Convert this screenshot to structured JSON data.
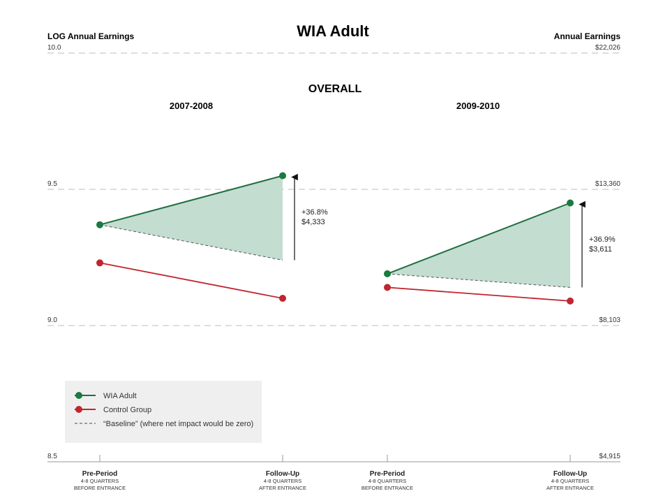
{
  "title": "WIA Adult",
  "section_title": "OVERALL",
  "colors": {
    "treatment": "#1f6e3f",
    "treatment_marker": "#1a7a40",
    "control": "#c0262f",
    "shade": "#c3ddd0",
    "grid": "#bdbdbd",
    "legend_bg": "#efefef"
  },
  "chart_data": {
    "type": "line",
    "left_axis": {
      "label": "LOG Annual Earnings",
      "ticks": [
        "10.0",
        "9.5",
        "9.0",
        "8.5"
      ],
      "tick_values": [
        10.0,
        9.5,
        9.0,
        8.5
      ],
      "range": [
        8.5,
        10.0
      ]
    },
    "right_axis": {
      "label": "Annual Earnings",
      "ticks": [
        "$22,026",
        "$13,360",
        "$8,103",
        "$4,915"
      ]
    },
    "x_categories": [
      {
        "label": "Pre-Period",
        "sub1": "4-8 QUARTERS",
        "sub2": "BEFORE ENTRANCE"
      },
      {
        "label": "Follow-Up",
        "sub1": "4-8 QUARTERS",
        "sub2": "AFTER ENTRANCE"
      },
      {
        "label": "Pre-Period",
        "sub1": "4-8 QUARTERS",
        "sub2": "BEFORE ENTRANCE"
      },
      {
        "label": "Follow-Up",
        "sub1": "4-8 QUARTERS",
        "sub2": "AFTER ENTRANCE"
      }
    ],
    "panels": [
      {
        "period": "2007-2008",
        "wia_adult": [
          9.37,
          9.55
        ],
        "control_group": [
          9.23,
          9.1
        ],
        "baseline": [
          9.37,
          9.24
        ],
        "annotation_pct": "+36.8%",
        "annotation_amt": "$4,333"
      },
      {
        "period": "2009-2010",
        "wia_adult": [
          9.19,
          9.45
        ],
        "control_group": [
          9.14,
          9.09
        ],
        "baseline": [
          9.19,
          9.14
        ],
        "annotation_pct": "+36.9%",
        "annotation_amt": "$3,611"
      }
    ],
    "legend": [
      {
        "name": "WIA Adult",
        "style": "green-line-dot"
      },
      {
        "name": "Control Group",
        "style": "red-line-dot"
      },
      {
        "name": "“Baseline” (where net impact would be zero)",
        "style": "dashed"
      }
    ],
    "grid": true,
    "legend_position": "bottom-left"
  }
}
